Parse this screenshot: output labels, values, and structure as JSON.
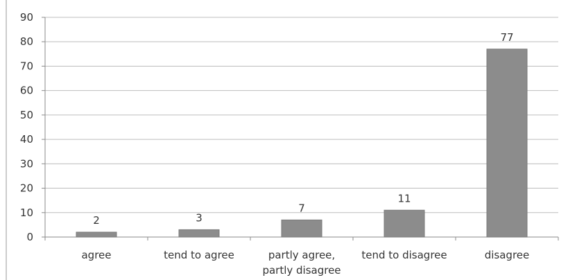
{
  "chart_data": {
    "type": "bar",
    "categories": [
      [
        "agree"
      ],
      [
        "tend to agree"
      ],
      [
        "partly agree,",
        "partly disagree"
      ],
      [
        "tend to disagree"
      ],
      [
        "disagree"
      ]
    ],
    "values": [
      2,
      3,
      7,
      11,
      77
    ],
    "data_labels": [
      "2",
      "3",
      "7",
      "11",
      "77"
    ],
    "y_ticks": [
      "0",
      "10",
      "20",
      "30",
      "40",
      "50",
      "60",
      "70",
      "80",
      "90"
    ],
    "ylim": [
      0,
      90
    ],
    "grid": true,
    "legend": "none",
    "colors": {
      "bar": "#8c8c8c",
      "bar_edge": "#7a7a7a",
      "grid": "#bdbdbd",
      "axis": "#8a8a8a",
      "frame": "#9a9a9a"
    }
  }
}
